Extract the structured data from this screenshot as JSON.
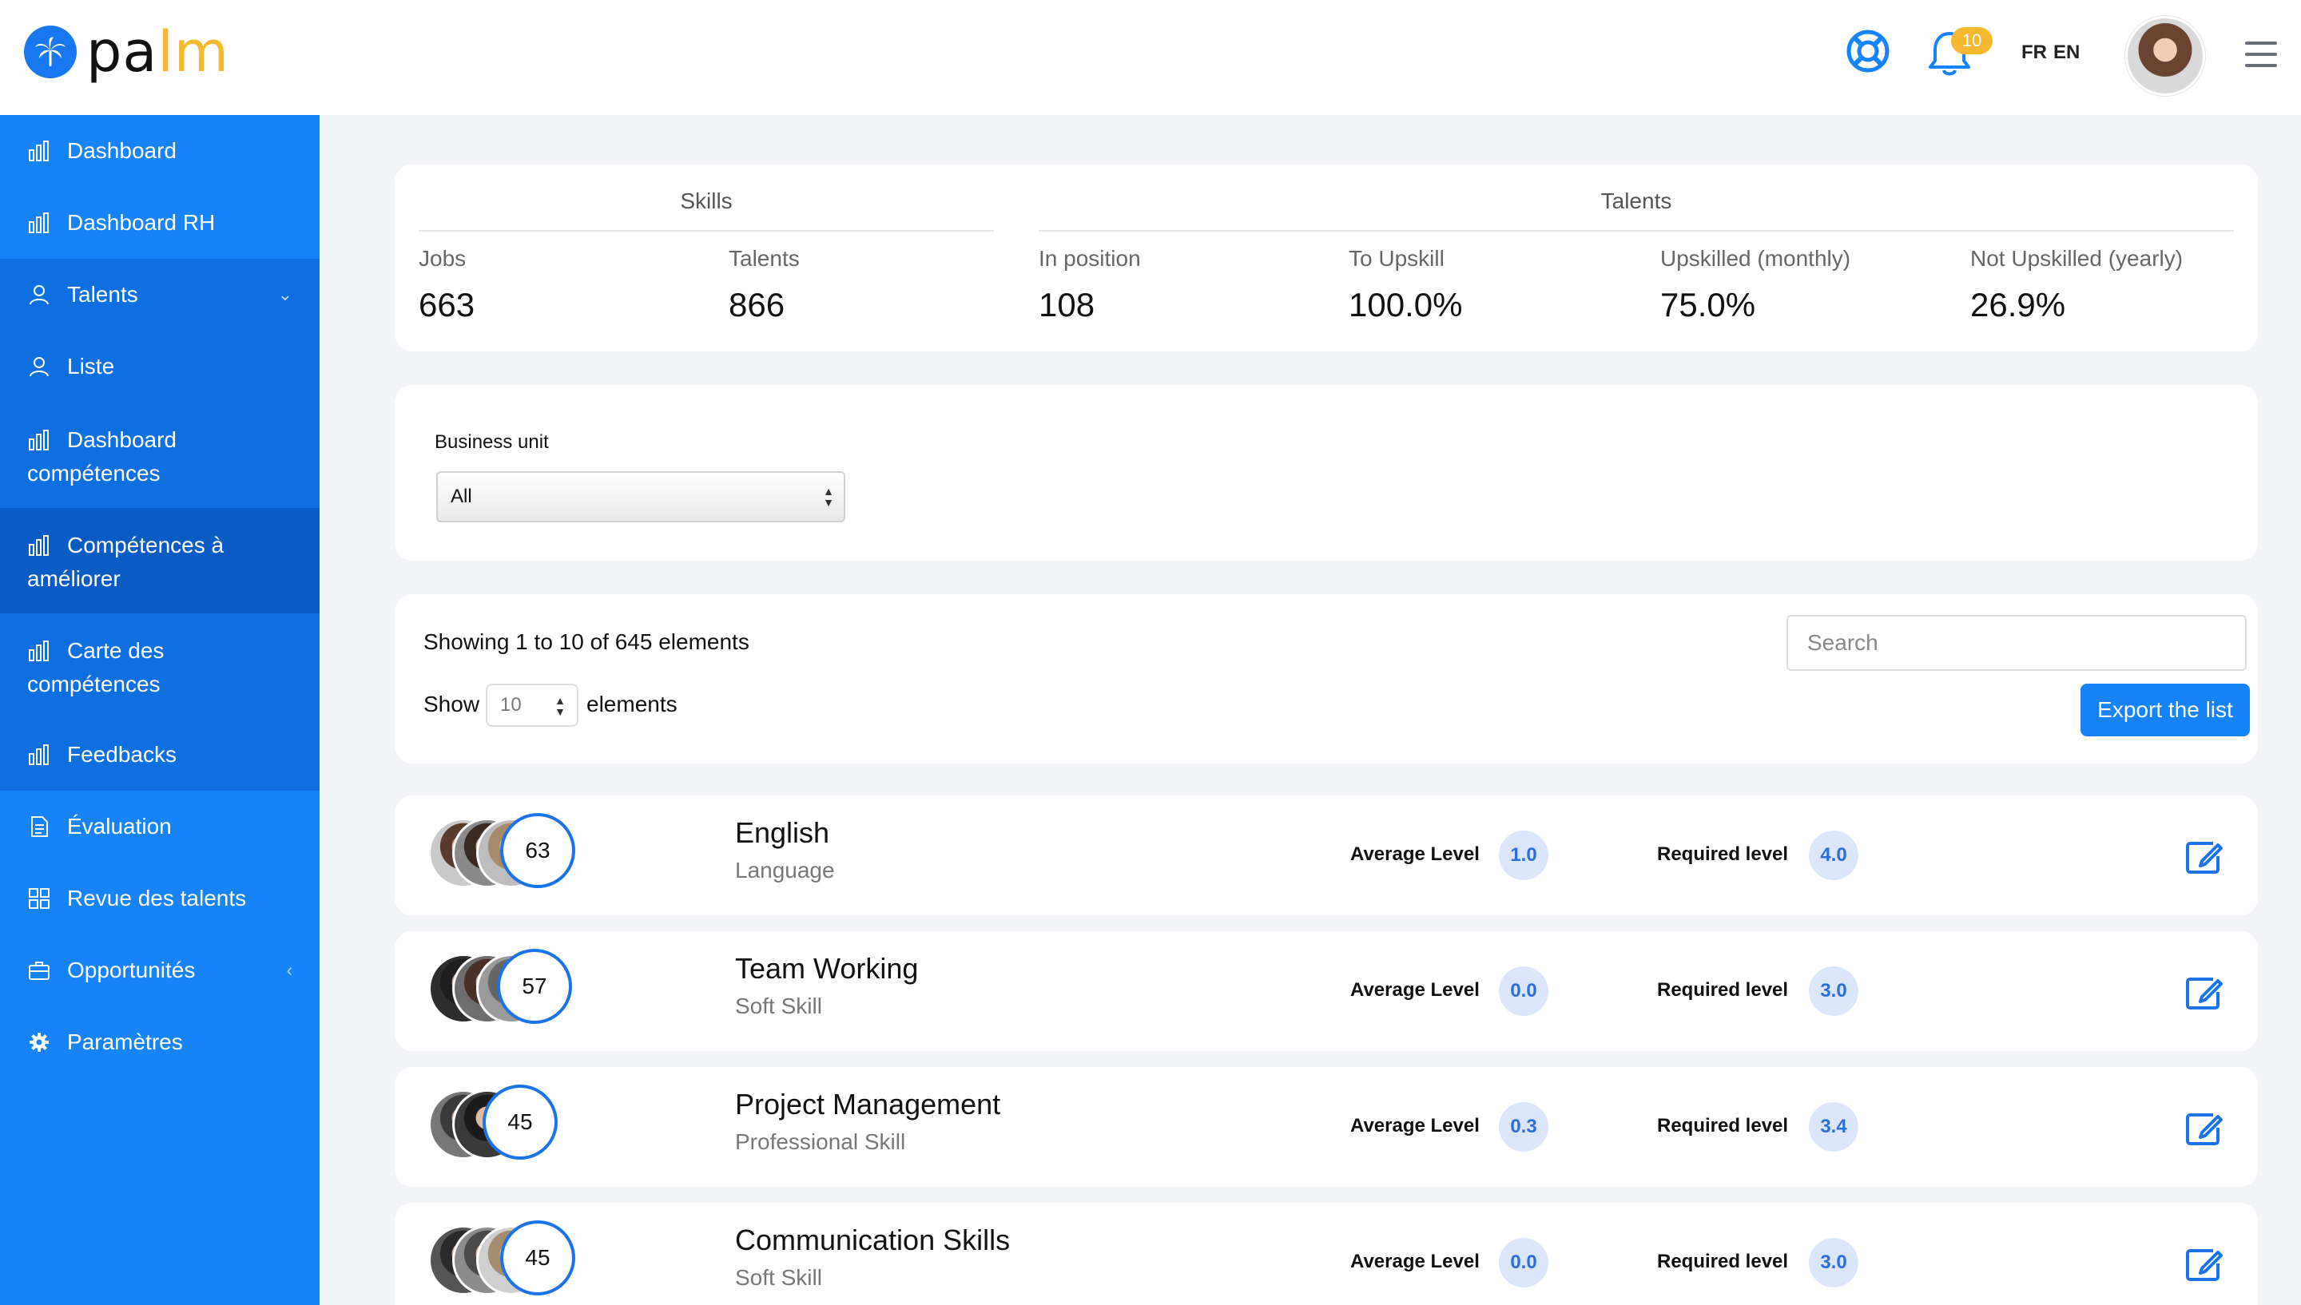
{
  "brand": {
    "name_part1": "pa",
    "name_part2": "lm",
    "accent": "#1683f9",
    "yellow": "#f5b82e"
  },
  "header": {
    "notification_count": "10",
    "lang_fr": "FR",
    "lang_en": "EN",
    "icons": [
      "lifebuoy-icon",
      "bell-icon",
      "avatar",
      "hamburger-menu-icon"
    ]
  },
  "sidebar": {
    "items": [
      {
        "label": "Dashboard",
        "icon": "bar-chart-icon"
      },
      {
        "label": "Dashboard RH",
        "icon": "bar-chart-icon"
      },
      {
        "label": "Talents",
        "icon": "user-icon"
      },
      {
        "label": "Liste",
        "icon": "user-icon"
      },
      {
        "label_line1": "Dashboard",
        "label_line2": "compétences",
        "icon": "bar-chart-icon"
      },
      {
        "label_line1": "Compétences à",
        "label_line2": "améliorer",
        "icon": "bar-chart-icon"
      },
      {
        "label_line1": "Carte des",
        "label_line2": "compétences",
        "icon": "bar-chart-icon"
      },
      {
        "label": "Feedbacks",
        "icon": "bar-chart-icon"
      },
      {
        "label": "Évaluation",
        "icon": "document-icon"
      },
      {
        "label": "Revue des talents",
        "icon": "grid-icon"
      },
      {
        "label": "Opportunités",
        "icon": "briefcase-icon"
      },
      {
        "label": "Paramètres",
        "icon": "gear-icon"
      }
    ]
  },
  "stats": {
    "skills_title": "Skills",
    "talents_title": "Talents",
    "items": [
      {
        "label": "Jobs",
        "value": "663"
      },
      {
        "label": "Talents",
        "value": "866"
      },
      {
        "label": "In position",
        "value": "108"
      },
      {
        "label": "To Upskill",
        "value": "100.0%"
      },
      {
        "label": "Upskilled (monthly)",
        "value": "75.0%"
      },
      {
        "label": "Not Upskilled (yearly)",
        "value": "26.9%"
      }
    ]
  },
  "filter": {
    "label": "Business unit",
    "selected": "All"
  },
  "table": {
    "showing_text": "Showing 1 to 10 of 645 elements",
    "show_label": "Show",
    "page_size": "10",
    "elements_label": "elements",
    "search_placeholder": "Search",
    "export_label": "Export the list",
    "avg_label": "Average Level",
    "req_label": "Required level"
  },
  "rows": [
    {
      "name": "English",
      "category": "Language",
      "count": "63",
      "average": "1.0",
      "required": "4.0"
    },
    {
      "name": "Team Working",
      "category": "Soft Skill",
      "count": "57",
      "average": "0.0",
      "required": "3.0"
    },
    {
      "name": "Project Management",
      "category": "Professional Skill",
      "count": "45",
      "average": "0.3",
      "required": "3.4"
    },
    {
      "name": "Communication Skills",
      "category": "Soft Skill",
      "count": "45",
      "average": "0.0",
      "required": "3.0"
    }
  ]
}
